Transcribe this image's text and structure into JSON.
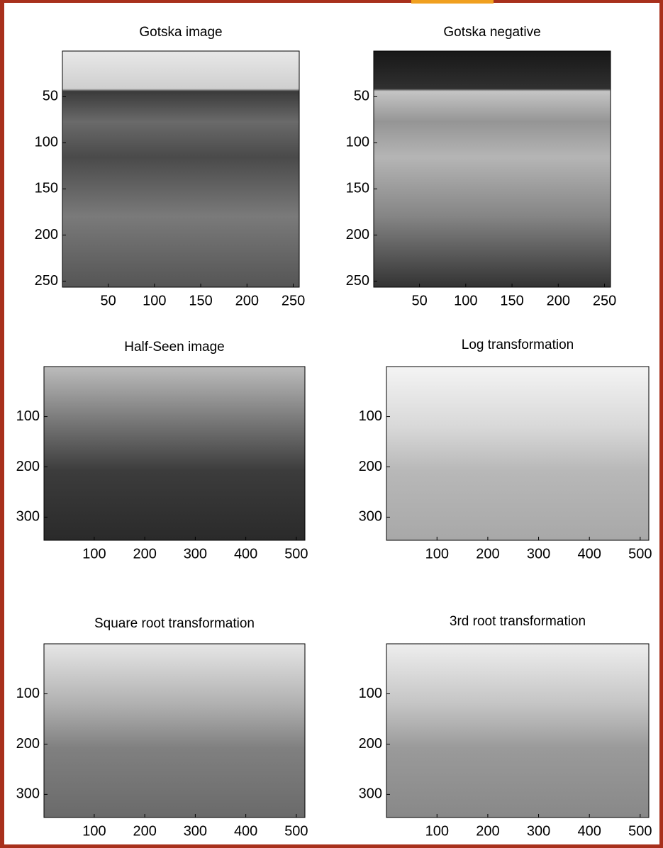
{
  "chart_data": [
    {
      "type": "image",
      "title": "Gotska image",
      "xlim": [
        0.5,
        256.5
      ],
      "ylim": [
        0.5,
        256.5
      ],
      "xticks": [
        50,
        100,
        150,
        200,
        250
      ],
      "yticks": [
        50,
        100,
        150,
        200,
        250
      ]
    },
    {
      "type": "image",
      "title": "Gotska negative",
      "xlim": [
        0.5,
        256.5
      ],
      "ylim": [
        0.5,
        256.5
      ],
      "xticks": [
        50,
        100,
        150,
        200,
        250
      ],
      "yticks": [
        50,
        100,
        150,
        200,
        250
      ]
    },
    {
      "type": "image",
      "title": "Half-Seen image",
      "xlim": [
        0.5,
        517
      ],
      "ylim": [
        0.5,
        346
      ],
      "xticks": [
        100,
        200,
        300,
        400,
        500
      ],
      "yticks": [
        100,
        200,
        300
      ]
    },
    {
      "type": "image",
      "title": "Log transformation",
      "xlim": [
        0.5,
        517
      ],
      "ylim": [
        0.5,
        346
      ],
      "xticks": [
        100,
        200,
        300,
        400,
        500
      ],
      "yticks": [
        100,
        200,
        300
      ]
    },
    {
      "type": "image",
      "title": "Square root transformation",
      "xlim": [
        0.5,
        517
      ],
      "ylim": [
        0.5,
        346
      ],
      "xticks": [
        100,
        200,
        300,
        400,
        500
      ],
      "yticks": [
        100,
        200,
        300
      ]
    },
    {
      "type": "image",
      "title": "3rd root transformation",
      "xlim": [
        0.5,
        517
      ],
      "ylim": [
        0.5,
        346
      ],
      "xticks": [
        100,
        200,
        300,
        400,
        500
      ],
      "yticks": [
        100,
        200,
        300
      ]
    }
  ]
}
